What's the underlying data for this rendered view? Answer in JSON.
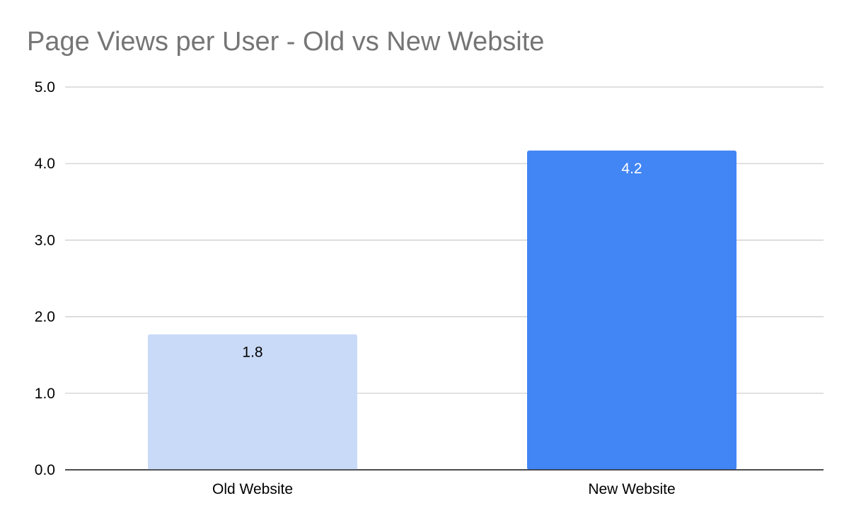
{
  "chart_data": {
    "type": "bar",
    "title": "Page Views per User - Old vs New Website",
    "categories": [
      "Old Website",
      "New Website"
    ],
    "series": [
      {
        "values": [
          1.77,
          4.17
        ],
        "data_labels": [
          "1.8",
          "4.2"
        ],
        "colors": [
          "#c9daf8",
          "#4285f4"
        ],
        "label_colors": [
          "#000000",
          "#ffffff"
        ]
      }
    ],
    "xlabel": "",
    "ylabel": "",
    "ylim": [
      0,
      5
    ],
    "yticks": [
      "0.0",
      "1.0",
      "2.0",
      "3.0",
      "4.0",
      "5.0"
    ],
    "grid": true,
    "legend": "none"
  }
}
